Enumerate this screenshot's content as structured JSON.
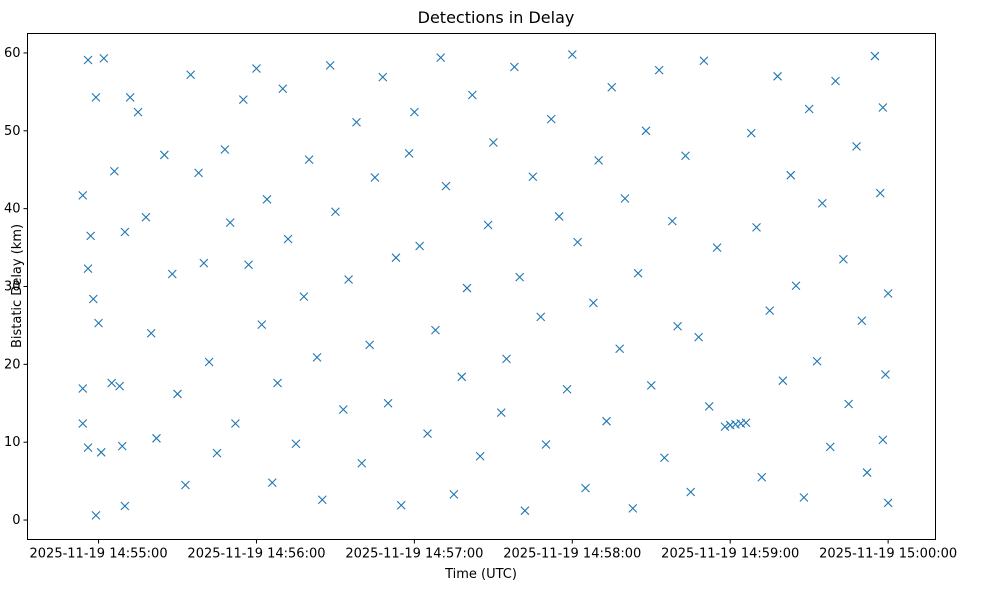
{
  "chart_data": {
    "type": "scatter",
    "title": "Detections in Delay",
    "xlabel": "Time (UTC)",
    "ylabel": "Bistatic Delay (km)",
    "marker": "x",
    "color": "#1f77b4",
    "grid": false,
    "xlim": [
      "2025-11-19 14:54:33",
      "2025-11-19 15:00:18"
    ],
    "ylim": [
      -2.5,
      62.5
    ],
    "xticks": [
      "2025-11-19 14:55:00",
      "2025-11-19 14:56:00",
      "2025-11-19 14:57:00",
      "2025-11-19 14:58:00",
      "2025-11-19 14:59:00",
      "2025-11-19 15:00:00"
    ],
    "yticks": [
      "0",
      "10",
      "20",
      "30",
      "40",
      "50",
      "60"
    ],
    "yticks_values": [
      0,
      10,
      20,
      30,
      40,
      50,
      60
    ],
    "points": [
      {
        "t": "2025-11-19 14:54:56",
        "y": 59.1
      },
      {
        "t": "2025-11-19 14:54:59",
        "y": 54.3
      },
      {
        "t": "2025-11-19 14:55:02",
        "y": 59.3
      },
      {
        "t": "2025-11-19 14:54:54",
        "y": 41.7
      },
      {
        "t": "2025-11-19 14:54:57",
        "y": 36.5
      },
      {
        "t": "2025-11-19 14:54:56",
        "y": 32.3
      },
      {
        "t": "2025-11-19 14:54:58",
        "y": 28.4
      },
      {
        "t": "2025-11-19 14:55:00",
        "y": 25.3
      },
      {
        "t": "2025-11-19 14:54:54",
        "y": 16.9
      },
      {
        "t": "2025-11-19 14:54:54",
        "y": 12.4
      },
      {
        "t": "2025-11-19 14:54:56",
        "y": 9.3
      },
      {
        "t": "2025-11-19 14:55:01",
        "y": 8.7
      },
      {
        "t": "2025-11-19 14:54:59",
        "y": 0.6
      },
      {
        "t": "2025-11-19 14:55:05",
        "y": 17.6
      },
      {
        "t": "2025-11-19 14:55:08",
        "y": 17.2
      },
      {
        "t": "2025-11-19 14:55:09",
        "y": 9.5
      },
      {
        "t": "2025-11-19 14:55:10",
        "y": 1.8
      },
      {
        "t": "2025-11-19 14:55:06",
        "y": 44.8
      },
      {
        "t": "2025-11-19 14:55:10",
        "y": 37.0
      },
      {
        "t": "2025-11-19 14:55:12",
        "y": 54.3
      },
      {
        "t": "2025-11-19 14:55:15",
        "y": 52.4
      },
      {
        "t": "2025-11-19 14:55:18",
        "y": 38.9
      },
      {
        "t": "2025-11-19 14:55:20",
        "y": 24.0
      },
      {
        "t": "2025-11-19 14:55:22",
        "y": 10.5
      },
      {
        "t": "2025-11-19 14:55:25",
        "y": 46.9
      },
      {
        "t": "2025-11-19 14:55:28",
        "y": 31.6
      },
      {
        "t": "2025-11-19 14:55:30",
        "y": 16.2
      },
      {
        "t": "2025-11-19 14:55:33",
        "y": 4.5
      },
      {
        "t": "2025-11-19 14:55:35",
        "y": 57.2
      },
      {
        "t": "2025-11-19 14:55:38",
        "y": 44.6
      },
      {
        "t": "2025-11-19 14:55:40",
        "y": 33.0
      },
      {
        "t": "2025-11-19 14:55:42",
        "y": 20.3
      },
      {
        "t": "2025-11-19 14:55:45",
        "y": 8.6
      },
      {
        "t": "2025-11-19 14:55:48",
        "y": 47.6
      },
      {
        "t": "2025-11-19 14:55:50",
        "y": 38.2
      },
      {
        "t": "2025-11-19 14:55:52",
        "y": 12.4
      },
      {
        "t": "2025-11-19 14:55:55",
        "y": 54.0
      },
      {
        "t": "2025-11-19 14:55:57",
        "y": 32.8
      },
      {
        "t": "2025-11-19 14:56:00",
        "y": 58.0
      },
      {
        "t": "2025-11-19 14:56:02",
        "y": 25.1
      },
      {
        "t": "2025-11-19 14:56:04",
        "y": 41.2
      },
      {
        "t": "2025-11-19 14:56:06",
        "y": 4.8
      },
      {
        "t": "2025-11-19 14:56:08",
        "y": 17.6
      },
      {
        "t": "2025-11-19 14:56:10",
        "y": 55.4
      },
      {
        "t": "2025-11-19 14:56:12",
        "y": 36.1
      },
      {
        "t": "2025-11-19 14:56:15",
        "y": 9.8
      },
      {
        "t": "2025-11-19 14:56:18",
        "y": 28.7
      },
      {
        "t": "2025-11-19 14:56:20",
        "y": 46.3
      },
      {
        "t": "2025-11-19 14:56:23",
        "y": 20.9
      },
      {
        "t": "2025-11-19 14:56:25",
        "y": 2.6
      },
      {
        "t": "2025-11-19 14:56:28",
        "y": 58.4
      },
      {
        "t": "2025-11-19 14:56:30",
        "y": 39.6
      },
      {
        "t": "2025-11-19 14:56:33",
        "y": 14.2
      },
      {
        "t": "2025-11-19 14:56:35",
        "y": 30.9
      },
      {
        "t": "2025-11-19 14:56:38",
        "y": 51.1
      },
      {
        "t": "2025-11-19 14:56:40",
        "y": 7.3
      },
      {
        "t": "2025-11-19 14:56:43",
        "y": 22.5
      },
      {
        "t": "2025-11-19 14:56:45",
        "y": 44.0
      },
      {
        "t": "2025-11-19 14:56:48",
        "y": 56.9
      },
      {
        "t": "2025-11-19 14:56:50",
        "y": 15.0
      },
      {
        "t": "2025-11-19 14:56:53",
        "y": 33.7
      },
      {
        "t": "2025-11-19 14:56:55",
        "y": 1.9
      },
      {
        "t": "2025-11-19 14:56:58",
        "y": 47.1
      },
      {
        "t": "2025-11-19 14:57:00",
        "y": 52.4
      },
      {
        "t": "2025-11-19 14:57:02",
        "y": 35.2
      },
      {
        "t": "2025-11-19 14:57:05",
        "y": 11.1
      },
      {
        "t": "2025-11-19 14:57:08",
        "y": 24.4
      },
      {
        "t": "2025-11-19 14:57:10",
        "y": 59.4
      },
      {
        "t": "2025-11-19 14:57:12",
        "y": 42.9
      },
      {
        "t": "2025-11-19 14:57:15",
        "y": 3.3
      },
      {
        "t": "2025-11-19 14:57:18",
        "y": 18.4
      },
      {
        "t": "2025-11-19 14:57:20",
        "y": 29.8
      },
      {
        "t": "2025-11-19 14:57:22",
        "y": 54.6
      },
      {
        "t": "2025-11-19 14:57:25",
        "y": 8.2
      },
      {
        "t": "2025-11-19 14:57:28",
        "y": 37.9
      },
      {
        "t": "2025-11-19 14:57:30",
        "y": 48.5
      },
      {
        "t": "2025-11-19 14:57:33",
        "y": 13.8
      },
      {
        "t": "2025-11-19 14:57:35",
        "y": 20.7
      },
      {
        "t": "2025-11-19 14:57:38",
        "y": 58.2
      },
      {
        "t": "2025-11-19 14:57:40",
        "y": 31.2
      },
      {
        "t": "2025-11-19 14:57:42",
        "y": 1.2
      },
      {
        "t": "2025-11-19 14:57:45",
        "y": 44.1
      },
      {
        "t": "2025-11-19 14:57:48",
        "y": 26.1
      },
      {
        "t": "2025-11-19 14:57:50",
        "y": 9.7
      },
      {
        "t": "2025-11-19 14:57:52",
        "y": 51.5
      },
      {
        "t": "2025-11-19 14:57:55",
        "y": 39.0
      },
      {
        "t": "2025-11-19 14:57:58",
        "y": 16.8
      },
      {
        "t": "2025-11-19 14:58:00",
        "y": 59.8
      },
      {
        "t": "2025-11-19 14:58:02",
        "y": 35.7
      },
      {
        "t": "2025-11-19 14:58:05",
        "y": 4.1
      },
      {
        "t": "2025-11-19 14:58:08",
        "y": 27.9
      },
      {
        "t": "2025-11-19 14:58:10",
        "y": 46.2
      },
      {
        "t": "2025-11-19 14:58:13",
        "y": 12.7
      },
      {
        "t": "2025-11-19 14:58:15",
        "y": 55.6
      },
      {
        "t": "2025-11-19 14:58:18",
        "y": 22.0
      },
      {
        "t": "2025-11-19 14:58:20",
        "y": 41.3
      },
      {
        "t": "2025-11-19 14:58:23",
        "y": 1.5
      },
      {
        "t": "2025-11-19 14:58:25",
        "y": 31.7
      },
      {
        "t": "2025-11-19 14:58:28",
        "y": 50.0
      },
      {
        "t": "2025-11-19 14:58:30",
        "y": 17.3
      },
      {
        "t": "2025-11-19 14:58:33",
        "y": 57.8
      },
      {
        "t": "2025-11-19 14:58:35",
        "y": 8.0
      },
      {
        "t": "2025-11-19 14:58:38",
        "y": 38.4
      },
      {
        "t": "2025-11-19 14:58:40",
        "y": 24.9
      },
      {
        "t": "2025-11-19 14:58:43",
        "y": 46.8
      },
      {
        "t": "2025-11-19 14:58:45",
        "y": 3.6
      },
      {
        "t": "2025-11-19 14:58:48",
        "y": 23.5
      },
      {
        "t": "2025-11-19 14:58:50",
        "y": 59.0
      },
      {
        "t": "2025-11-19 14:58:52",
        "y": 14.6
      },
      {
        "t": "2025-11-19 14:58:55",
        "y": 35.0
      },
      {
        "t": "2025-11-19 14:58:58",
        "y": 12.0
      },
      {
        "t": "2025-11-19 14:59:00",
        "y": 12.2
      },
      {
        "t": "2025-11-19 14:59:02",
        "y": 12.3
      },
      {
        "t": "2025-11-19 14:59:04",
        "y": 12.4
      },
      {
        "t": "2025-11-19 14:59:06",
        "y": 12.5
      },
      {
        "t": "2025-11-19 14:59:08",
        "y": 49.7
      },
      {
        "t": "2025-11-19 14:59:10",
        "y": 37.6
      },
      {
        "t": "2025-11-19 14:59:12",
        "y": 5.5
      },
      {
        "t": "2025-11-19 14:59:15",
        "y": 26.9
      },
      {
        "t": "2025-11-19 14:59:18",
        "y": 57.0
      },
      {
        "t": "2025-11-19 14:59:20",
        "y": 17.9
      },
      {
        "t": "2025-11-19 14:59:23",
        "y": 44.3
      },
      {
        "t": "2025-11-19 14:59:25",
        "y": 30.1
      },
      {
        "t": "2025-11-19 14:59:28",
        "y": 2.9
      },
      {
        "t": "2025-11-19 14:59:30",
        "y": 52.8
      },
      {
        "t": "2025-11-19 14:59:33",
        "y": 20.4
      },
      {
        "t": "2025-11-19 14:59:35",
        "y": 40.7
      },
      {
        "t": "2025-11-19 14:59:38",
        "y": 9.4
      },
      {
        "t": "2025-11-19 14:59:40",
        "y": 56.4
      },
      {
        "t": "2025-11-19 14:59:43",
        "y": 33.5
      },
      {
        "t": "2025-11-19 14:59:45",
        "y": 14.9
      },
      {
        "t": "2025-11-19 14:59:48",
        "y": 48.0
      },
      {
        "t": "2025-11-19 14:59:50",
        "y": 25.6
      },
      {
        "t": "2025-11-19 14:59:52",
        "y": 6.1
      },
      {
        "t": "2025-11-19 14:59:55",
        "y": 59.6
      },
      {
        "t": "2025-11-19 14:59:57",
        "y": 42.0
      },
      {
        "t": "2025-11-19 14:59:59",
        "y": 18.7
      },
      {
        "t": "2025-11-19 15:00:00",
        "y": 29.1
      },
      {
        "t": "2025-11-19 15:00:00",
        "y": 2.2
      },
      {
        "t": "2025-11-19 14:59:58",
        "y": 53.0
      },
      {
        "t": "2025-11-19 14:59:58",
        "y": 10.3
      }
    ]
  }
}
